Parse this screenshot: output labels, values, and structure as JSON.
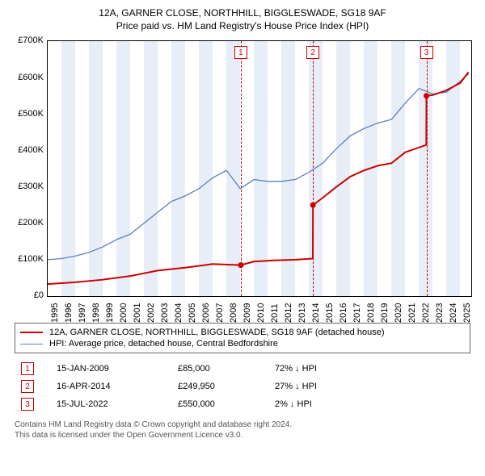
{
  "title": {
    "line1": "12A, GARNER CLOSE, NORTHHILL, BIGGLESWADE, SG18 9AF",
    "line2": "Price paid vs. HM Land Registry's House Price Index (HPI)"
  },
  "chart": {
    "type": "line",
    "background_color": "#ffffff",
    "axis_color": "#000000",
    "band_color": "#e8eef7",
    "xlim": [
      1995,
      2025.8
    ],
    "ylim": [
      0,
      700000
    ],
    "y_ticks": [
      0,
      100000,
      200000,
      300000,
      400000,
      500000,
      600000,
      700000
    ],
    "y_tick_labels": [
      "£0",
      "£100K",
      "£200K",
      "£300K",
      "£400K",
      "£500K",
      "£600K",
      "£700K"
    ],
    "x_ticks": [
      1995,
      1996,
      1997,
      1998,
      1999,
      2000,
      2001,
      2002,
      2003,
      2004,
      2005,
      2006,
      2007,
      2008,
      2009,
      2010,
      2011,
      2012,
      2013,
      2014,
      2015,
      2016,
      2017,
      2018,
      2019,
      2020,
      2021,
      2022,
      2023,
      2024,
      2025
    ],
    "band_years": [
      1996,
      1998,
      2000,
      2002,
      2004,
      2006,
      2008,
      2010,
      2012,
      2014,
      2016,
      2018,
      2020,
      2022,
      2024
    ],
    "series": [
      {
        "name": "price_paid",
        "label": "12A, GARNER CLOSE, NORTHHILL, BIGGLESWADE, SG18 9AF (detached house)",
        "color": "#cc0000",
        "width": 2,
        "points": [
          [
            1995,
            33000
          ],
          [
            2009.04,
            85000
          ],
          [
            2009.04,
            85000
          ],
          [
            2014.29,
            249950
          ],
          [
            2014.29,
            249950
          ],
          [
            2022.54,
            550000
          ],
          [
            2022.54,
            550000
          ],
          [
            2025.6,
            615000
          ]
        ],
        "markers": [
          {
            "x": 2009.04,
            "y": 85000
          },
          {
            "x": 2014.29,
            "y": 249950
          },
          {
            "x": 2022.54,
            "y": 550000
          }
        ],
        "index_path": [
          [
            1995,
            33000
          ],
          [
            1997,
            38000
          ],
          [
            1999,
            45000
          ],
          [
            2001,
            55000
          ],
          [
            2003,
            70000
          ],
          [
            2005,
            78000
          ],
          [
            2007,
            88000
          ],
          [
            2009.04,
            85000
          ],
          [
            2010,
            95000
          ],
          [
            2011.5,
            98000
          ],
          [
            2013,
            100000
          ],
          [
            2014.28,
            103000
          ],
          [
            2014.29,
            249950
          ],
          [
            2015,
            270000
          ],
          [
            2016,
            300000
          ],
          [
            2017,
            328000
          ],
          [
            2018,
            345000
          ],
          [
            2019,
            358000
          ],
          [
            2020,
            365000
          ],
          [
            2021,
            395000
          ],
          [
            2022.53,
            415000
          ],
          [
            2022.54,
            550000
          ],
          [
            2023,
            552000
          ],
          [
            2024,
            565000
          ],
          [
            2025,
            585000
          ],
          [
            2025.6,
            615000
          ]
        ]
      },
      {
        "name": "hpi",
        "label": "HPI: Average price, detached house, Central Bedfordshire",
        "color": "#5b7fbf",
        "width": 1.3,
        "points": [
          [
            1995,
            100000
          ],
          [
            1996,
            103000
          ],
          [
            1997,
            110000
          ],
          [
            1998,
            120000
          ],
          [
            1999,
            135000
          ],
          [
            2000,
            155000
          ],
          [
            2001,
            170000
          ],
          [
            2002,
            200000
          ],
          [
            2003,
            230000
          ],
          [
            2004,
            260000
          ],
          [
            2005,
            275000
          ],
          [
            2006,
            295000
          ],
          [
            2007,
            325000
          ],
          [
            2008,
            345000
          ],
          [
            2009,
            295000
          ],
          [
            2010,
            320000
          ],
          [
            2011,
            315000
          ],
          [
            2012,
            315000
          ],
          [
            2013,
            320000
          ],
          [
            2014,
            340000
          ],
          [
            2015,
            365000
          ],
          [
            2016,
            405000
          ],
          [
            2017,
            440000
          ],
          [
            2018,
            460000
          ],
          [
            2019,
            475000
          ],
          [
            2020,
            485000
          ],
          [
            2021,
            530000
          ],
          [
            2022,
            570000
          ],
          [
            2023,
            555000
          ],
          [
            2024,
            560000
          ],
          [
            2025,
            590000
          ],
          [
            2025.6,
            610000
          ]
        ]
      }
    ],
    "events": [
      {
        "n": "1",
        "x": 2009.04,
        "color": "#cc0000",
        "date": "15-JAN-2009",
        "price": "£85,000",
        "delta": "72% ↓ HPI"
      },
      {
        "n": "2",
        "x": 2014.29,
        "color": "#cc0000",
        "date": "16-APR-2014",
        "price": "£249,950",
        "delta": "27% ↓ HPI"
      },
      {
        "n": "3",
        "x": 2022.54,
        "color": "#cc0000",
        "date": "15-JUL-2022",
        "price": "£550,000",
        "delta": "2% ↓ HPI"
      }
    ]
  },
  "legend": {
    "items": [
      {
        "color": "#cc0000",
        "width": 2,
        "label_ref": "chart.series.0.label"
      },
      {
        "color": "#5b7fbf",
        "width": 1.3,
        "label_ref": "chart.series.1.label"
      }
    ]
  },
  "footnote": {
    "line1": "Contains HM Land Registry data © Crown copyright and database right 2024.",
    "line2": "This data is licensed under the Open Government Licence v3.0."
  }
}
